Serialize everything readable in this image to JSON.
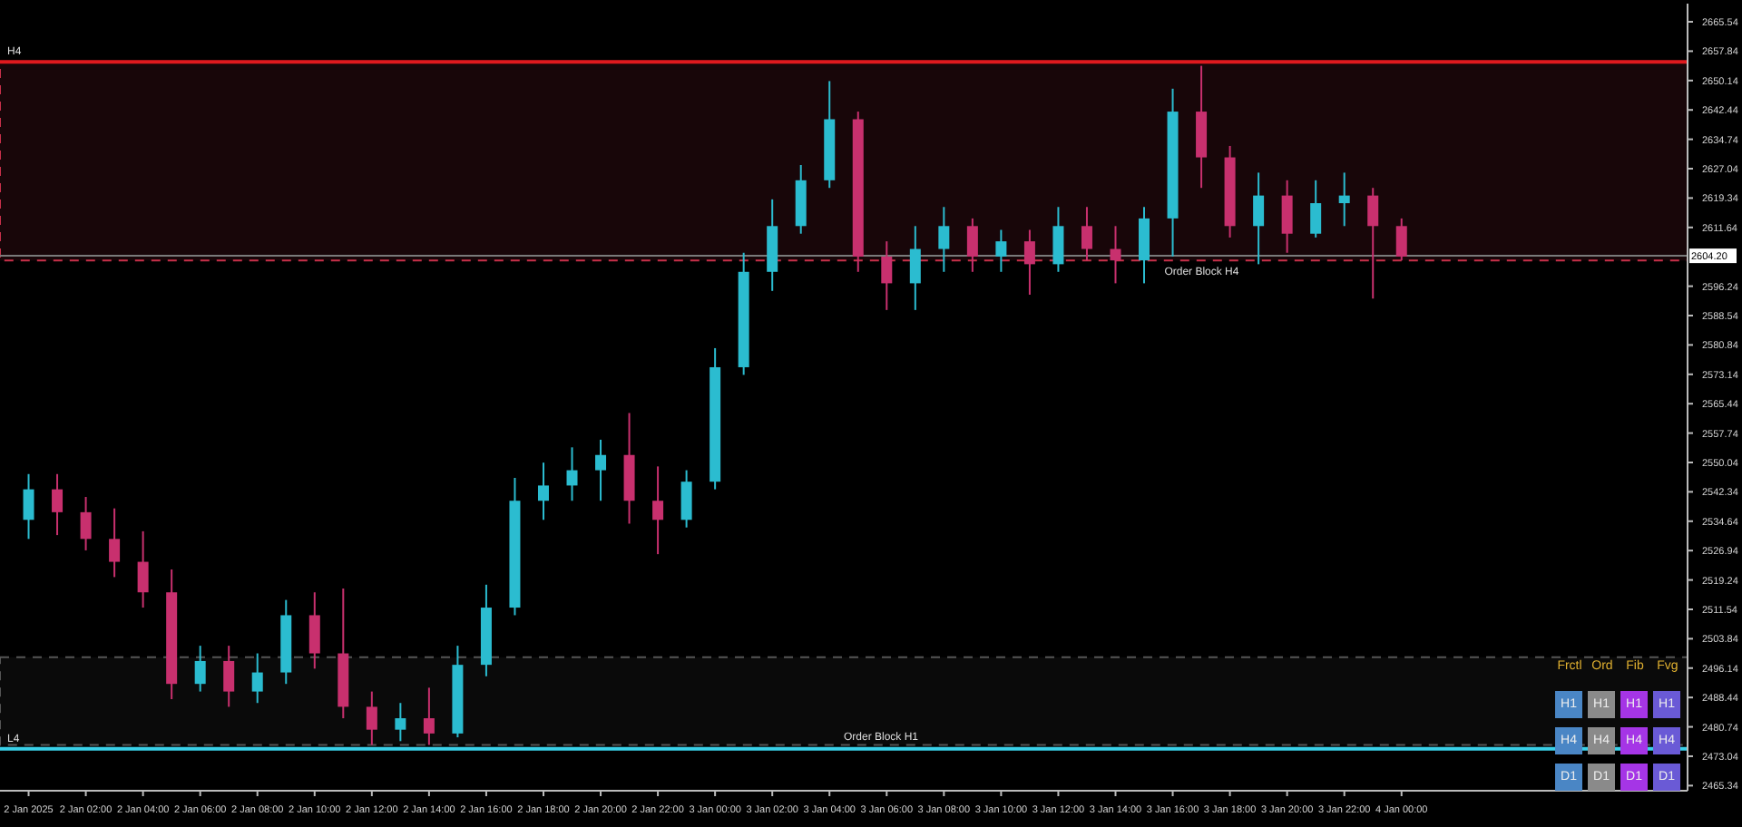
{
  "chart_data": {
    "type": "candlestick",
    "x": [
      "2025-01-02T00:00",
      "2025-01-02T01:00",
      "2025-01-02T02:00",
      "2025-01-02T03:00",
      "2025-01-02T04:00",
      "2025-01-02T05:00",
      "2025-01-02T06:00",
      "2025-01-02T07:00",
      "2025-01-02T08:00",
      "2025-01-02T09:00",
      "2025-01-02T10:00",
      "2025-01-02T11:00",
      "2025-01-02T12:00",
      "2025-01-02T13:00",
      "2025-01-02T14:00",
      "2025-01-02T15:00",
      "2025-01-02T16:00",
      "2025-01-02T17:00",
      "2025-01-02T18:00",
      "2025-01-02T19:00",
      "2025-01-02T20:00",
      "2025-01-02T21:00",
      "2025-01-02T22:00",
      "2025-01-02T23:00",
      "2025-01-03T00:00",
      "2025-01-03T01:00",
      "2025-01-03T02:00",
      "2025-01-03T03:00",
      "2025-01-03T04:00",
      "2025-01-03T05:00",
      "2025-01-03T06:00",
      "2025-01-03T07:00",
      "2025-01-03T08:00",
      "2025-01-03T09:00",
      "2025-01-03T10:00",
      "2025-01-03T11:00",
      "2025-01-03T12:00",
      "2025-01-03T13:00",
      "2025-01-03T14:00",
      "2025-01-03T15:00",
      "2025-01-03T16:00",
      "2025-01-03T17:00",
      "2025-01-03T18:00",
      "2025-01-03T19:00",
      "2025-01-03T20:00",
      "2025-01-03T21:00",
      "2025-01-03T22:00",
      "2025-01-03T23:00",
      "2025-01-04T00:00"
    ],
    "ohlc": [
      [
        2535,
        2547,
        2530,
        2543
      ],
      [
        2543,
        2547,
        2531,
        2537
      ],
      [
        2537,
        2541,
        2527,
        2530
      ],
      [
        2530,
        2538,
        2520,
        2524
      ],
      [
        2524,
        2532,
        2512,
        2516
      ],
      [
        2516,
        2522,
        2488,
        2492
      ],
      [
        2492,
        2502,
        2490,
        2498
      ],
      [
        2498,
        2502,
        2486,
        2490
      ],
      [
        2490,
        2500,
        2487,
        2495
      ],
      [
        2495,
        2514,
        2492,
        2510
      ],
      [
        2510,
        2516,
        2496,
        2500
      ],
      [
        2500,
        2517,
        2483,
        2486
      ],
      [
        2486,
        2490,
        2476,
        2480
      ],
      [
        2480,
        2487,
        2477,
        2483
      ],
      [
        2483,
        2491,
        2476,
        2479
      ],
      [
        2479,
        2502,
        2478,
        2497
      ],
      [
        2497,
        2518,
        2494,
        2512
      ],
      [
        2512,
        2546,
        2510,
        2540
      ],
      [
        2540,
        2550,
        2535,
        2544
      ],
      [
        2544,
        2554,
        2540,
        2548
      ],
      [
        2548,
        2556,
        2540,
        2552
      ],
      [
        2552,
        2563,
        2534,
        2540
      ],
      [
        2540,
        2549,
        2526,
        2535
      ],
      [
        2535,
        2548,
        2533,
        2545
      ],
      [
        2545,
        2580,
        2543,
        2575
      ],
      [
        2575,
        2605,
        2573,
        2600
      ],
      [
        2600,
        2619,
        2595,
        2612
      ],
      [
        2612,
        2628,
        2610,
        2624
      ],
      [
        2624,
        2650,
        2622,
        2640
      ],
      [
        2640,
        2642,
        2600,
        2604
      ],
      [
        2604,
        2608,
        2590,
        2597
      ],
      [
        2597,
        2612,
        2590,
        2606
      ],
      [
        2606,
        2617,
        2600,
        2612
      ],
      [
        2612,
        2614,
        2600,
        2604
      ],
      [
        2604,
        2611,
        2600,
        2608
      ],
      [
        2608,
        2611,
        2594,
        2602
      ],
      [
        2602,
        2617,
        2600,
        2612
      ],
      [
        2612,
        2617,
        2603,
        2606
      ],
      [
        2606,
        2612,
        2597,
        2603
      ],
      [
        2603,
        2617,
        2597,
        2614
      ],
      [
        2614,
        2648,
        2604,
        2642
      ],
      [
        2642,
        2654,
        2622,
        2630
      ],
      [
        2630,
        2633,
        2609,
        2612
      ],
      [
        2612,
        2626,
        2602,
        2620
      ],
      [
        2620,
        2624,
        2605,
        2610
      ],
      [
        2610,
        2624,
        2609,
        2618
      ],
      [
        2618,
        2626,
        2612,
        2620
      ],
      [
        2620,
        2622,
        2593,
        2612
      ],
      [
        2612,
        2614,
        2603,
        2604
      ]
    ],
    "colors": [
      "#2bbcd0",
      "#c8306e",
      "#c8306e",
      "#c8306e",
      "#c8306e",
      "#c8306e",
      "#2bbcd0",
      "#c8306e",
      "#2bbcd0",
      "#2bbcd0",
      "#c8306e",
      "#c8306e",
      "#c8306e",
      "#2bbcd0",
      "#c8306e",
      "#2bbcd0",
      "#2bbcd0",
      "#2bbcd0",
      "#2bbcd0",
      "#2bbcd0",
      "#2bbcd0",
      "#c8306e",
      "#c8306e",
      "#2bbcd0",
      "#2bbcd0",
      "#2bbcd0",
      "#2bbcd0",
      "#2bbcd0",
      "#2bbcd0",
      "#c8306e",
      "#c8306e",
      "#2bbcd0",
      "#2bbcd0",
      "#c8306e",
      "#2bbcd0",
      "#c8306e",
      "#2bbcd0",
      "#c8306e",
      "#c8306e",
      "#2bbcd0",
      "#2bbcd0",
      "#c8306e",
      "#c8306e",
      "#2bbcd0",
      "#c8306e",
      "#2bbcd0",
      "#2bbcd0",
      "#c8306e",
      "#c8306e"
    ],
    "xlim": [
      "2025-01-01T23:00",
      "2025-01-04T10:00"
    ],
    "xticks": [
      {
        "value": "2025-01-02T00:00",
        "label": "2 Jan 2025"
      },
      {
        "value": "2025-01-02T02:00",
        "label": "2 Jan 02:00"
      },
      {
        "value": "2025-01-02T04:00",
        "label": "2 Jan 04:00"
      },
      {
        "value": "2025-01-02T06:00",
        "label": "2 Jan 06:00"
      },
      {
        "value": "2025-01-02T08:00",
        "label": "2 Jan 08:00"
      },
      {
        "value": "2025-01-02T10:00",
        "label": "2 Jan 10:00"
      },
      {
        "value": "2025-01-02T12:00",
        "label": "2 Jan 12:00"
      },
      {
        "value": "2025-01-02T14:00",
        "label": "2 Jan 14:00"
      },
      {
        "value": "2025-01-02T16:00",
        "label": "2 Jan 16:00"
      },
      {
        "value": "2025-01-02T18:00",
        "label": "2 Jan 18:00"
      },
      {
        "value": "2025-01-02T20:00",
        "label": "2 Jan 20:00"
      },
      {
        "value": "2025-01-02T22:00",
        "label": "2 Jan 22:00"
      },
      {
        "value": "2025-01-03T00:00",
        "label": "3 Jan 00:00"
      },
      {
        "value": "2025-01-03T02:00",
        "label": "3 Jan 02:00"
      },
      {
        "value": "2025-01-03T04:00",
        "label": "3 Jan 04:00"
      },
      {
        "value": "2025-01-03T06:00",
        "label": "3 Jan 06:00"
      },
      {
        "value": "2025-01-03T08:00",
        "label": "3 Jan 08:00"
      },
      {
        "value": "2025-01-03T10:00",
        "label": "3 Jan 10:00"
      },
      {
        "value": "2025-01-03T12:00",
        "label": "3 Jan 12:00"
      },
      {
        "value": "2025-01-03T14:00",
        "label": "3 Jan 14:00"
      },
      {
        "value": "2025-01-03T16:00",
        "label": "3 Jan 16:00"
      },
      {
        "value": "2025-01-03T18:00",
        "label": "3 Jan 18:00"
      },
      {
        "value": "2025-01-03T20:00",
        "label": "3 Jan 20:00"
      },
      {
        "value": "2025-01-03T22:00",
        "label": "3 Jan 22:00"
      },
      {
        "value": "2025-01-04T00:00",
        "label": "4 Jan 00:00"
      }
    ],
    "ylim": [
      2464,
      2670.3
    ],
    "yticks": [
      2665.54,
      2657.84,
      2650.14,
      2642.44,
      2634.74,
      2627.04,
      2619.34,
      2611.64,
      2596.24,
      2588.54,
      2580.84,
      2573.14,
      2565.44,
      2557.74,
      2550.04,
      2542.34,
      2534.64,
      2526.94,
      2519.24,
      2511.54,
      2503.84,
      2496.14,
      2488.44,
      2480.74,
      2473.04,
      2465.34
    ],
    "ref_lines": [
      {
        "axis": "y",
        "value": 2655,
        "label": "H4",
        "color": "#e0191e"
      },
      {
        "axis": "y",
        "value": 2475,
        "label": "L4",
        "color": "#3ad0e8"
      },
      {
        "axis": "y",
        "value": 2604.2,
        "label": "2604.20",
        "color": "#7a7a7a"
      }
    ],
    "bands": [
      {
        "axis": "y",
        "from": 2603,
        "to": 2655,
        "label": "Order Block H4",
        "color": "#c8304a"
      },
      {
        "axis": "y",
        "from": 2476,
        "to": 2499,
        "label": "Order Block H1",
        "color": "#555555"
      }
    ],
    "annotations": [
      "Frctl",
      "Ord",
      "Fib",
      "Fvg",
      "H1",
      "H1",
      "H1",
      "H1",
      "H4",
      "H4",
      "H4",
      "H4",
      "D1",
      "D1",
      "D1",
      "D1"
    ]
  }
}
